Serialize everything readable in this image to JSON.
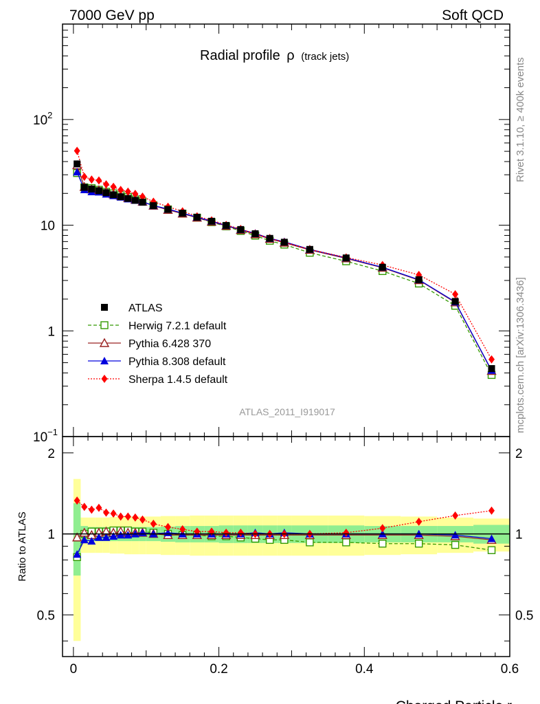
{
  "header": {
    "left": "7000 GeV pp",
    "right": "Soft QCD"
  },
  "side": {
    "rivet": "Rivet 3.1.10, ≥ 400k events",
    "mcplots": "mcplots.cern.ch [arXiv:1306.3436]"
  },
  "chart_data": {
    "type": "line",
    "title": "Radial profile",
    "title_symbol": "ρ",
    "subtitle": "(track jets)",
    "watermark": "ATLAS_2011_I919017",
    "xlabel": "Charged Particle r",
    "ylabel_ratio": "Ratio to ATLAS",
    "xlim": [
      -0.015,
      0.6
    ],
    "ylim_main": [
      0.1,
      800
    ],
    "ylim_ratio": [
      0.35,
      2.3
    ],
    "yscale_main": "log",
    "yscale_ratio": "log",
    "xticks": [
      0,
      0.2,
      0.4,
      0.6
    ],
    "xtick_labels": [
      "0",
      "0.2",
      "0.4",
      "0.6"
    ],
    "main_yticks": [
      {
        "label": "1",
        "value": 1
      },
      {
        "label": "10",
        "value": 10
      }
    ],
    "main_ytick_powers": [
      {
        "base": "10",
        "exp": "2",
        "value": 100
      },
      {
        "base": "10",
        "exp": "−1",
        "value": 0.1
      }
    ],
    "ratio_yticks": [
      {
        "label": "0.5",
        "value": 0.5
      },
      {
        "label": "1",
        "value": 1
      },
      {
        "label": "2",
        "value": 2
      }
    ],
    "legend_position": "lower-left",
    "x": [
      0.005,
      0.015,
      0.025,
      0.035,
      0.045,
      0.055,
      0.065,
      0.075,
      0.085,
      0.095,
      0.11,
      0.13,
      0.15,
      0.17,
      0.19,
      0.21,
      0.23,
      0.25,
      0.27,
      0.29,
      0.325,
      0.375,
      0.425,
      0.475,
      0.525,
      0.575
    ],
    "bins": [
      [
        0.0,
        0.01
      ],
      [
        0.01,
        0.02
      ],
      [
        0.02,
        0.03
      ],
      [
        0.03,
        0.04
      ],
      [
        0.04,
        0.05
      ],
      [
        0.05,
        0.06
      ],
      [
        0.06,
        0.07
      ],
      [
        0.07,
        0.08
      ],
      [
        0.08,
        0.09
      ],
      [
        0.09,
        0.1
      ],
      [
        0.1,
        0.12
      ],
      [
        0.12,
        0.14
      ],
      [
        0.14,
        0.16
      ],
      [
        0.16,
        0.18
      ],
      [
        0.18,
        0.2
      ],
      [
        0.2,
        0.22
      ],
      [
        0.22,
        0.24
      ],
      [
        0.24,
        0.26
      ],
      [
        0.26,
        0.28
      ],
      [
        0.28,
        0.3
      ],
      [
        0.3,
        0.35
      ],
      [
        0.35,
        0.4
      ],
      [
        0.4,
        0.45
      ],
      [
        0.45,
        0.5
      ],
      [
        0.5,
        0.55
      ],
      [
        0.55,
        0.6
      ]
    ],
    "data": {
      "name": "ATLAS",
      "values": [
        38,
        22.8,
        22,
        21.2,
        20.3,
        19.4,
        18.6,
        17.9,
        17.2,
        16.5,
        15.3,
        14.1,
        13,
        11.9,
        10.9,
        9.95,
        9.1,
        8.3,
        7.5,
        6.9,
        5.9,
        4.9,
        4.0,
        3.05,
        1.9,
        0.44
      ],
      "band_inner": [
        0.3,
        0.07,
        0.06,
        0.06,
        0.06,
        0.06,
        0.06,
        0.06,
        0.06,
        0.06,
        0.06,
        0.065,
        0.07,
        0.07,
        0.07,
        0.075,
        0.075,
        0.075,
        0.075,
        0.075,
        0.075,
        0.075,
        0.07,
        0.07,
        0.07,
        0.08
      ],
      "band_outer": [
        0.6,
        0.15,
        0.15,
        0.15,
        0.15,
        0.155,
        0.155,
        0.16,
        0.16,
        0.16,
        0.16,
        0.165,
        0.165,
        0.17,
        0.17,
        0.17,
        0.17,
        0.17,
        0.17,
        0.17,
        0.17,
        0.17,
        0.165,
        0.16,
        0.15,
        0.14
      ]
    },
    "series": [
      {
        "name": "Herwig 7.2.1 default",
        "color": "#339900",
        "style": "dashed",
        "marker": "open-square",
        "ratio": [
          0.82,
          1.0,
          1.02,
          1.02,
          1.02,
          1.03,
          1.03,
          1.03,
          1.02,
          1.02,
          1.01,
          1.0,
          0.99,
          0.99,
          0.98,
          0.98,
          0.97,
          0.96,
          0.95,
          0.95,
          0.93,
          0.93,
          0.92,
          0.92,
          0.91,
          0.87
        ]
      },
      {
        "name": "Pythia 6.428 370",
        "color": "#992222",
        "style": "solid",
        "marker": "open-triangle",
        "ratio": [
          0.97,
          1.01,
          0.99,
          1.01,
          1.02,
          1.01,
          1.02,
          1.01,
          1.01,
          1.01,
          1.0,
          0.99,
          0.99,
          0.99,
          0.99,
          0.99,
          0.99,
          0.99,
          0.99,
          0.99,
          0.99,
          0.99,
          0.99,
          0.99,
          0.98,
          0.95
        ]
      },
      {
        "name": "Pythia 8.308 default",
        "color": "#0000dd",
        "style": "solid",
        "marker": "filled-triangle",
        "ratio": [
          0.84,
          0.95,
          0.94,
          0.97,
          0.97,
          0.98,
          0.99,
          0.99,
          1.0,
          1.01,
          1.0,
          1.01,
          1.0,
          1.0,
          1.0,
          1.0,
          1.0,
          1.01,
          1.0,
          1.01,
          1.0,
          1.0,
          1.0,
          1.0,
          0.99,
          0.96
        ]
      },
      {
        "name": "Sherpa 1.4.5 default",
        "color": "#ff0000",
        "style": "dotted",
        "marker": "filled-diamond",
        "ratio": [
          1.33,
          1.26,
          1.23,
          1.25,
          1.2,
          1.19,
          1.16,
          1.16,
          1.15,
          1.13,
          1.09,
          1.06,
          1.04,
          1.02,
          1.02,
          1.01,
          1.01,
          1.0,
          1.0,
          1.0,
          1.0,
          1.01,
          1.05,
          1.11,
          1.17,
          1.22
        ]
      }
    ]
  }
}
